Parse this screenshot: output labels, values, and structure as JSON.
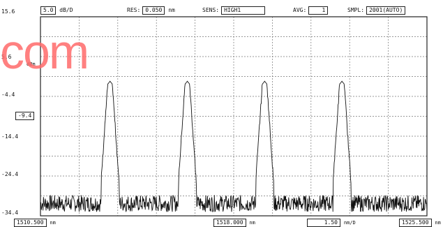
{
  "header": {
    "scale_value": "5.0",
    "scale_unit": "dB/D",
    "res_label": "RES:",
    "res_value": "0.050",
    "res_unit": "nm",
    "sens_label": "SENS:",
    "sens_value": "HIGH1",
    "avg_label": "AVG:",
    "avg_value": "1",
    "smpl_label": "SMPL:",
    "smpl_value": "2001(AUTO)"
  },
  "y_axis": {
    "top": "15.6",
    "l1": "5.6",
    "unit": "dBm",
    "l2": "-4.4",
    "ref": "-9.4",
    "l3": "-14.4",
    "l4": "-24.4",
    "bottom": "-34.4"
  },
  "x_axis": {
    "start": "1510.500",
    "start_unit": "nm",
    "center": "1518.000",
    "center_unit": "nm",
    "span": "1.50",
    "span_unit": "nm/D",
    "stop": "1525.500",
    "stop_unit": "nm"
  },
  "watermark": "com",
  "colors": {
    "trace": "#111111",
    "grid": "#777777",
    "frame": "#222222",
    "watermark": "#ff6b6b"
  },
  "chart_data": {
    "type": "line",
    "title": "",
    "xlabel": "",
    "ylabel": "dBm",
    "xlim": [
      1510.5,
      1525.5
    ],
    "ylim": [
      -34.4,
      15.6
    ],
    "grid": true,
    "peaks_nm": [
      1513.2,
      1516.2,
      1519.2,
      1522.2
    ],
    "peak_level_dbm": -0.6,
    "noise_floor_dbm": -31.5
  }
}
